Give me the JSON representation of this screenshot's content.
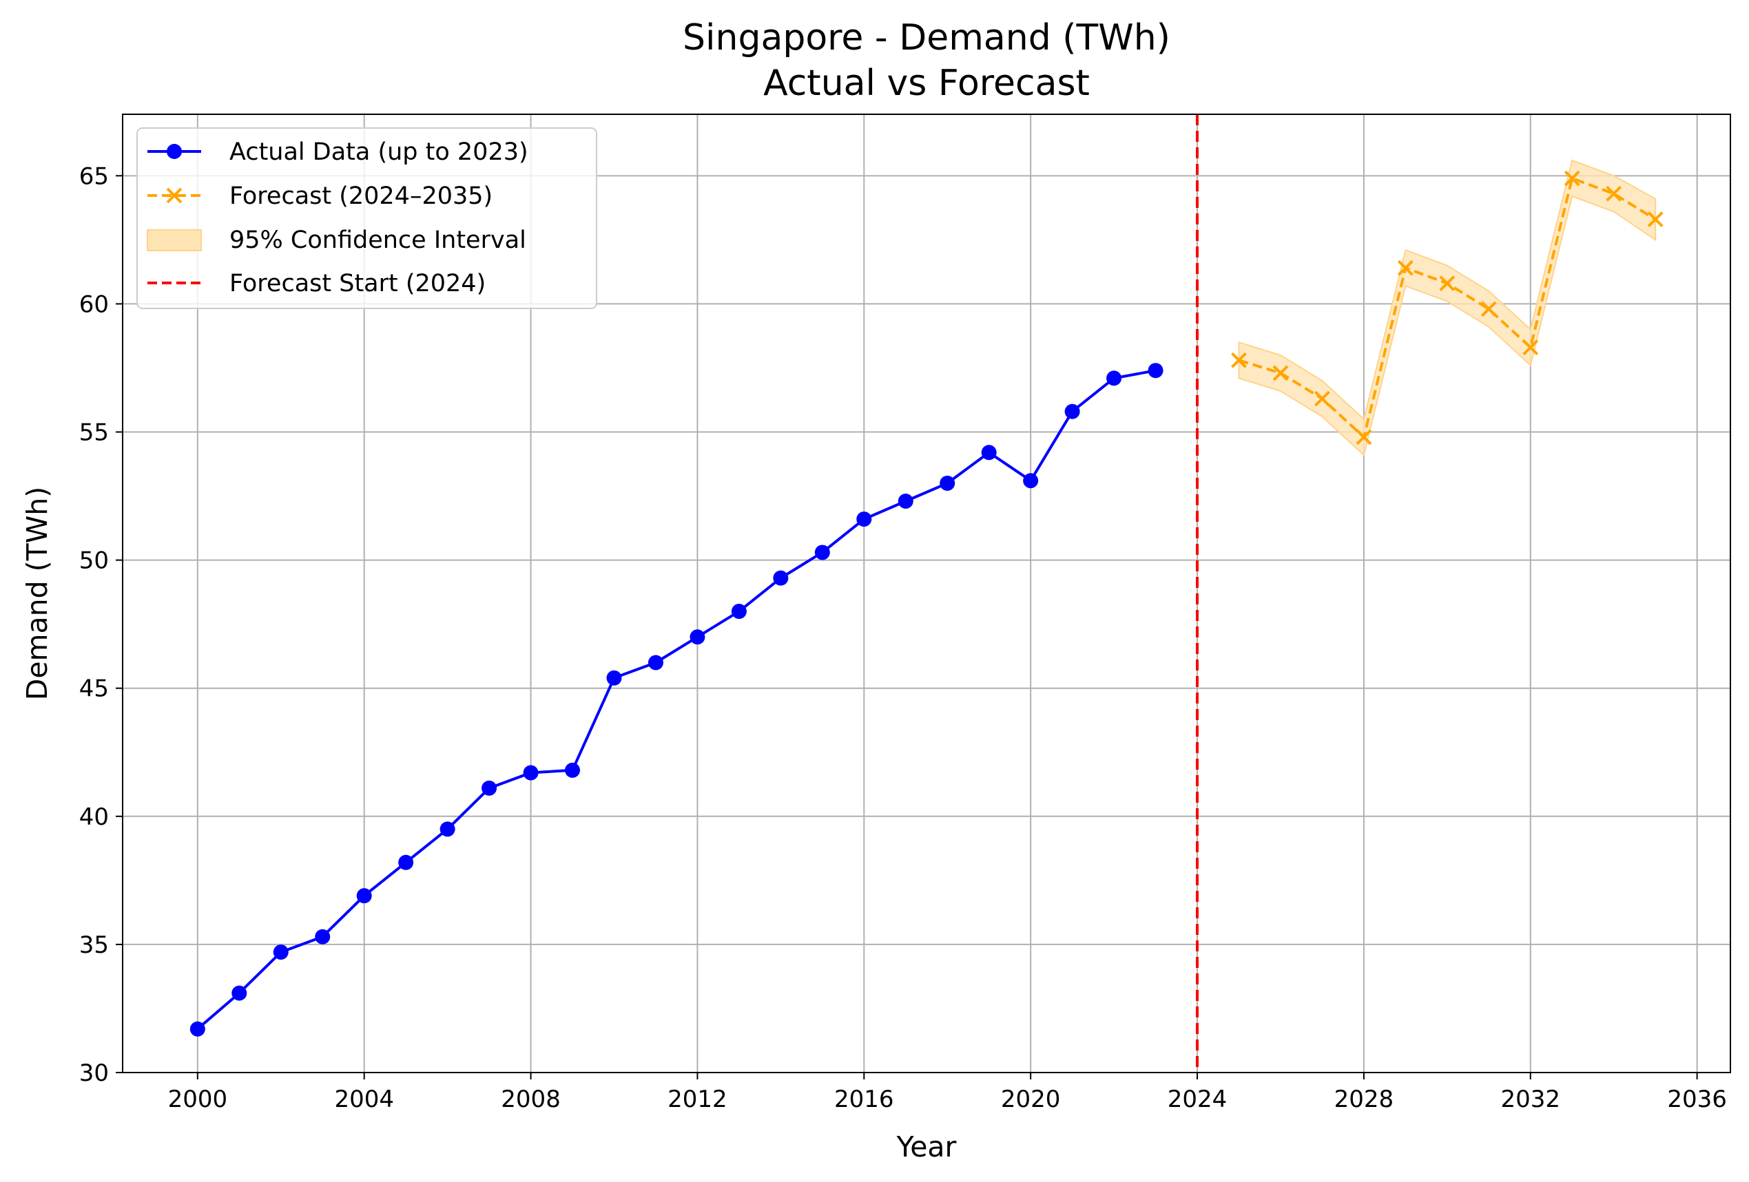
{
  "chart_data": {
    "type": "line",
    "title": "Singapore - Demand (TWh)",
    "subtitle": "Actual vs Forecast",
    "xlabel": "Year",
    "ylabel": "Demand (TWh)",
    "xlim": [
      1998.2,
      2036.8
    ],
    "ylim": [
      30,
      67.4
    ],
    "xticks": [
      2000,
      2004,
      2008,
      2012,
      2016,
      2020,
      2024,
      2028,
      2032,
      2036
    ],
    "yticks": [
      30,
      35,
      40,
      45,
      50,
      55,
      60,
      65
    ],
    "grid": true,
    "legend_position": "top-left",
    "colors": {
      "actual": "#0000ff",
      "forecast": "#ffa500",
      "confidence": "#ffe4b3",
      "forecast_start": "#ff0000"
    },
    "series": [
      {
        "name": "Actual Data (up to 2023)",
        "style": "solid-line-circle-markers",
        "x": [
          2000,
          2001,
          2002,
          2003,
          2004,
          2005,
          2006,
          2007,
          2008,
          2009,
          2010,
          2011,
          2012,
          2013,
          2014,
          2015,
          2016,
          2017,
          2018,
          2019,
          2020,
          2021,
          2022,
          2023
        ],
        "values": [
          31.7,
          33.1,
          34.7,
          35.3,
          36.9,
          38.2,
          39.5,
          41.1,
          41.7,
          41.8,
          45.4,
          46.0,
          47.0,
          48.0,
          49.3,
          50.3,
          51.6,
          52.3,
          53.0,
          54.2,
          53.1,
          55.8,
          57.1,
          57.4
        ]
      },
      {
        "name": "Forecast (2024–2035)",
        "style": "dashed-line-x-markers",
        "x": [
          2025,
          2026,
          2027,
          2028,
          2029,
          2030,
          2031,
          2032,
          2033,
          2034,
          2035
        ],
        "values": [
          57.8,
          57.3,
          56.3,
          54.8,
          61.4,
          60.8,
          59.8,
          58.3,
          64.9,
          64.3,
          63.3
        ],
        "lower": [
          57.1,
          56.6,
          55.6,
          54.1,
          60.7,
          60.1,
          59.1,
          57.6,
          64.2,
          63.6,
          62.5
        ],
        "upper": [
          58.5,
          58.0,
          57.0,
          55.5,
          62.1,
          61.5,
          60.5,
          59.0,
          65.6,
          65.0,
          64.1
        ]
      },
      {
        "name": "95% Confidence Interval",
        "style": "band"
      },
      {
        "name": "Forecast Start (2024)",
        "style": "dashed-vertical-line",
        "x": 2024
      }
    ]
  }
}
